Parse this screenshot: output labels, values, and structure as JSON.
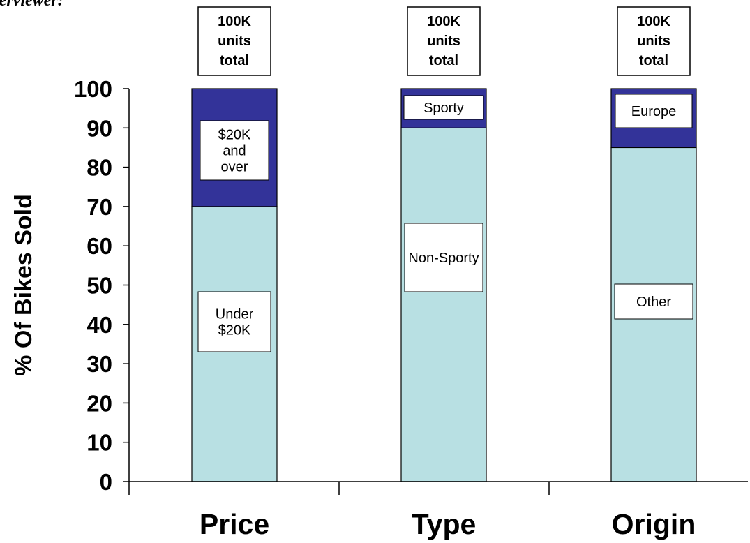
{
  "corner_text": "terviewer:",
  "chart_data": {
    "type": "bar",
    "stacked": true,
    "ylabel": "% Of Bikes Sold",
    "ylim": [
      0,
      100
    ],
    "yticks": [
      0,
      10,
      20,
      30,
      40,
      50,
      60,
      70,
      80,
      90,
      100
    ],
    "grid": false,
    "categories": [
      "Price",
      "Type",
      "Origin"
    ],
    "totals": [
      "100K units total",
      "100K units total",
      "100K units total"
    ],
    "series": [
      {
        "name": "lower segment",
        "values": [
          70,
          90,
          85
        ],
        "labels": [
          "Under $20K",
          "Non-Sporty",
          "Other"
        ]
      },
      {
        "name": "upper segment",
        "values": [
          30,
          10,
          15
        ],
        "labels": [
          "$20K and over",
          "Sporty",
          "Europe"
        ]
      }
    ],
    "colors": {
      "lower": "#b8e0e3",
      "upper": "#333399"
    }
  }
}
